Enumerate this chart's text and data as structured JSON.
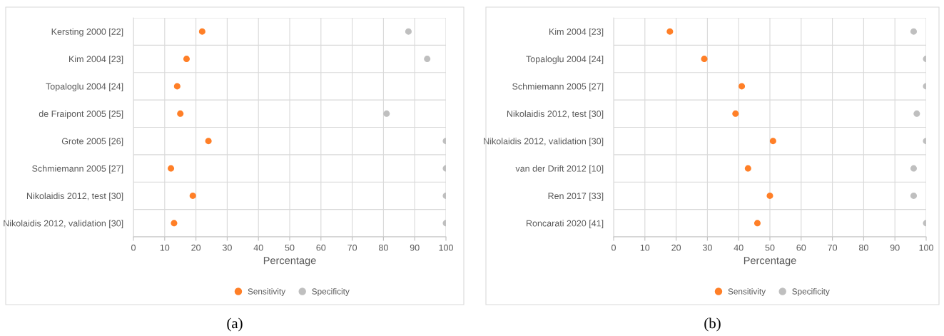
{
  "chart_data": [
    {
      "type": "scatter",
      "orientation": "horizontal",
      "xlabel": "Percentage",
      "categories": [
        "Kersting 2000 [22]",
        "Kim 2004 [23]",
        "Topaloglu 2004 [24]",
        "de Fraipont 2005 [25]",
        "Grote 2005 [26]",
        "Schmiemann 2005 [27]",
        "Nikolaidis 2012, test [30]",
        "Nikolaidis 2012, validation [30]"
      ],
      "series": [
        {
          "name": "Sensitivity",
          "color": "#ff7f27",
          "values": [
            22,
            17,
            14,
            15,
            24,
            12,
            19,
            13
          ]
        },
        {
          "name": "Specificity",
          "color": "#bfbfbf",
          "values": [
            88,
            94,
            null,
            81,
            100,
            100,
            100,
            100
          ]
        }
      ],
      "xlim": [
        0,
        100
      ],
      "xticks": [
        0,
        10,
        20,
        30,
        40,
        50,
        60,
        70,
        80,
        90,
        100
      ],
      "grid": true,
      "legend": "bottom",
      "marker": "circle",
      "annotations": [
        "(a)"
      ]
    },
    {
      "type": "scatter",
      "orientation": "horizontal",
      "xlabel": "Percentage",
      "categories": [
        "Kim 2004 [23]",
        "Topaloglu 2004 [24]",
        "Schmiemann 2005 [27]",
        "Nikolaidis 2012, test [30]",
        "Nikolaidis 2012, validation [30]",
        "van der Drift 2012 [10]",
        "Ren 2017 [33]",
        "Roncarati 2020 [41]"
      ],
      "series": [
        {
          "name": "Sensitivity",
          "color": "#ff7f27",
          "values": [
            18,
            29,
            41,
            39,
            51,
            43,
            50,
            46
          ]
        },
        {
          "name": "Specificity",
          "color": "#bfbfbf",
          "values": [
            96,
            100,
            100,
            97,
            100,
            96,
            96,
            100
          ]
        }
      ],
      "xlim": [
        0,
        100
      ],
      "xticks": [
        0,
        10,
        20,
        30,
        40,
        50,
        60,
        70,
        80,
        90,
        100
      ],
      "grid": true,
      "legend": "bottom",
      "marker": "circle",
      "annotations": [
        "(b)"
      ]
    }
  ]
}
